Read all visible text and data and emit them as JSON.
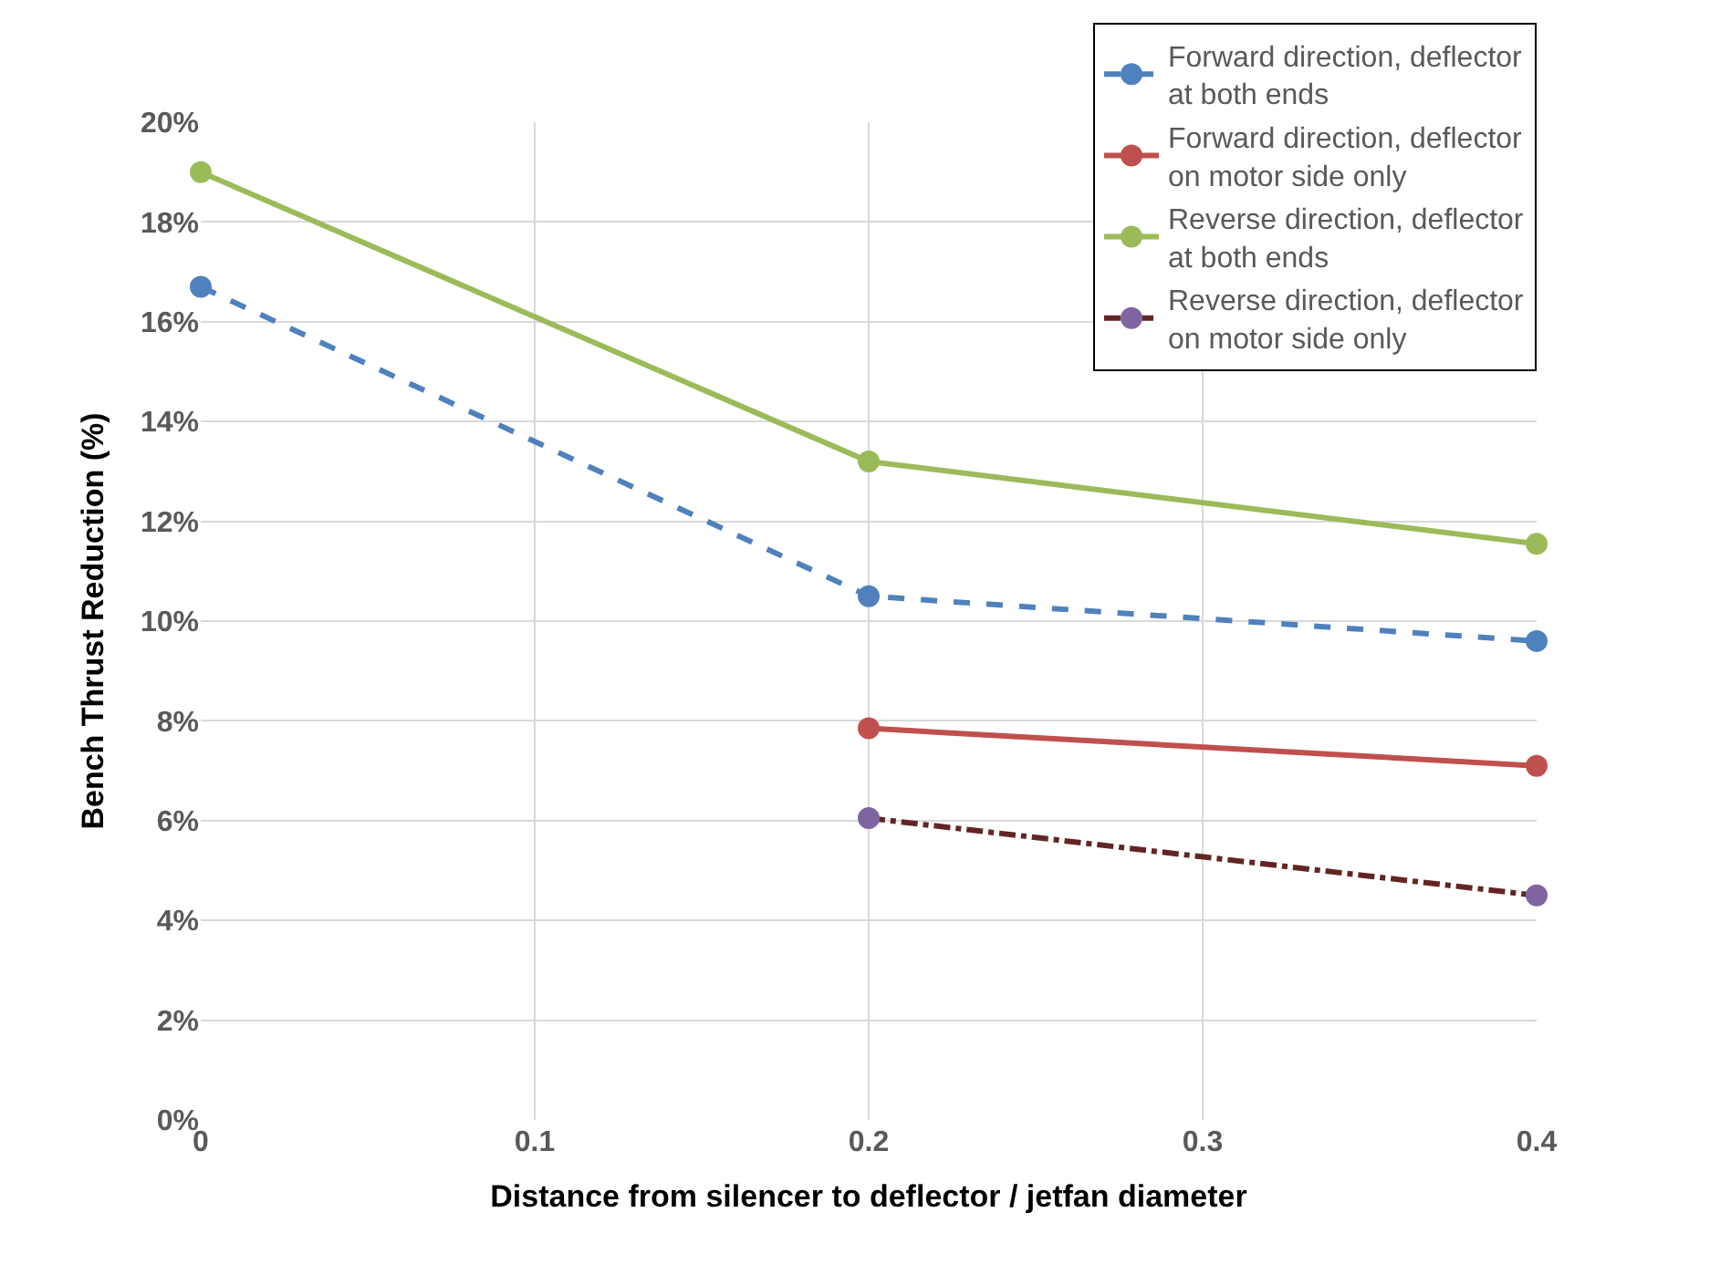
{
  "chart_data": {
    "type": "line",
    "xlabel": "Distance from silencer to deflector / jetfan diameter",
    "ylabel": "Bench Thrust Reduction (%)",
    "x": [
      0,
      0.2,
      0.4
    ],
    "xlim": [
      0,
      0.4
    ],
    "xticks": [
      0,
      0.1,
      0.2,
      0.3,
      0.4
    ],
    "ylim": [
      0,
      20
    ],
    "yticks": [
      {
        "value": 0,
        "label": "0%"
      },
      {
        "value": 2,
        "label": "2%"
      },
      {
        "value": 4,
        "label": "4%"
      },
      {
        "value": 6,
        "label": "6%"
      },
      {
        "value": 8,
        "label": "8%"
      },
      {
        "value": 10,
        "label": "10%"
      },
      {
        "value": 12,
        "label": "12%"
      },
      {
        "value": 14,
        "label": "14%"
      },
      {
        "value": 16,
        "label": "16%"
      },
      {
        "value": 18,
        "label": "18%"
      },
      {
        "value": 20,
        "label": "20%"
      }
    ],
    "grid": true,
    "legend": "top right",
    "marker": "circle",
    "series": [
      {
        "name": "Forward direction, deflector at both ends",
        "color": "#4f81bd",
        "line_style": "dashed",
        "values": [
          16.7,
          10.5,
          9.6
        ]
      },
      {
        "name": "Forward direction, deflector on motor side only",
        "color": "#c0504d",
        "line_style": "solid",
        "values": [
          null,
          7.85,
          7.1
        ]
      },
      {
        "name": "Reverse direction, deflector at both ends",
        "color": "#9bbb59",
        "line_style": "solid",
        "values": [
          19.0,
          13.2,
          11.55
        ]
      },
      {
        "name": "Reverse direction, deflector on motor side only",
        "color": "#632523",
        "colors": [
          "#8064a2",
          "#8064a2",
          "#8064a2"
        ],
        "line_style": "dashdot",
        "values": [
          null,
          6.05,
          4.5
        ]
      }
    ]
  }
}
